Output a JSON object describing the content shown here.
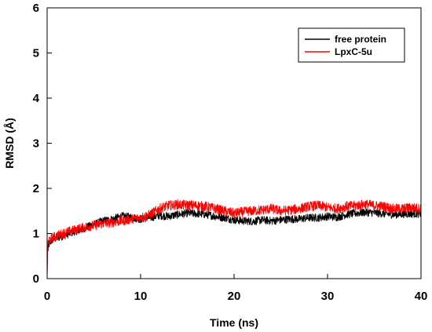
{
  "chart_data": {
    "type": "line",
    "title": "",
    "xlabel": "Time (ns)",
    "ylabel": "RMSD (Å)",
    "xlim": [
      0,
      40
    ],
    "ylim": [
      0,
      6
    ],
    "xticks": [
      0,
      10,
      20,
      30,
      40
    ],
    "yticks": [
      0,
      1,
      2,
      3,
      4,
      5,
      6
    ],
    "grid": false,
    "legend": "top-right",
    "series": [
      {
        "name": "free protein",
        "color": "#000000",
        "x": [
          0,
          0.05,
          0.2,
          0.5,
          1,
          2,
          3,
          4,
          5,
          6,
          7,
          8,
          9,
          10,
          11,
          12,
          13,
          14,
          15,
          16,
          17,
          18,
          19,
          20,
          21,
          22,
          23,
          24,
          25,
          26,
          27,
          28,
          29,
          30,
          31,
          32,
          33,
          34,
          35,
          36,
          37,
          38,
          39,
          40
        ],
        "y": [
          0.0,
          0.6,
          0.75,
          0.85,
          0.9,
          0.97,
          1.05,
          1.12,
          1.2,
          1.28,
          1.32,
          1.38,
          1.36,
          1.32,
          1.35,
          1.4,
          1.38,
          1.42,
          1.45,
          1.44,
          1.42,
          1.38,
          1.35,
          1.3,
          1.28,
          1.27,
          1.3,
          1.28,
          1.3,
          1.32,
          1.32,
          1.35,
          1.35,
          1.38,
          1.36,
          1.42,
          1.45,
          1.47,
          1.46,
          1.44,
          1.42,
          1.43,
          1.44,
          1.44
        ]
      },
      {
        "name": "LpxC-5u",
        "color": "#ff0000",
        "x": [
          0,
          0.05,
          0.2,
          0.5,
          1,
          2,
          3,
          4,
          5,
          6,
          7,
          8,
          9,
          10,
          11,
          12,
          13,
          14,
          15,
          16,
          17,
          18,
          19,
          20,
          21,
          22,
          23,
          24,
          25,
          26,
          27,
          28,
          29,
          30,
          31,
          32,
          33,
          34,
          35,
          36,
          37,
          38,
          39,
          40
        ],
        "y": [
          0.0,
          0.7,
          0.85,
          0.9,
          0.95,
          1.02,
          1.08,
          1.14,
          1.18,
          1.22,
          1.25,
          1.28,
          1.32,
          1.35,
          1.42,
          1.55,
          1.62,
          1.64,
          1.63,
          1.62,
          1.6,
          1.55,
          1.5,
          1.45,
          1.48,
          1.5,
          1.52,
          1.55,
          1.5,
          1.52,
          1.55,
          1.6,
          1.62,
          1.58,
          1.55,
          1.6,
          1.62,
          1.65,
          1.62,
          1.6,
          1.55,
          1.55,
          1.58,
          1.55
        ]
      }
    ]
  }
}
